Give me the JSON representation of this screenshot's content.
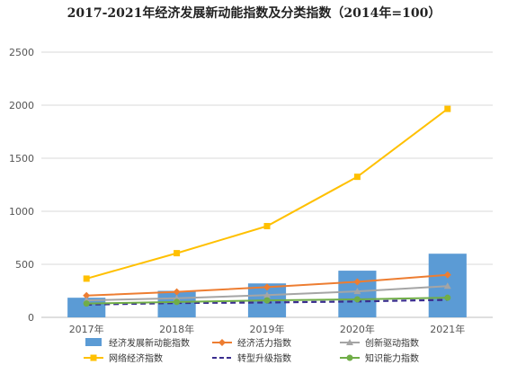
{
  "chart_data": {
    "type": "bar",
    "title": "2017-2021年经济发展新动能指数及分类指数（2014年=100）",
    "categories": [
      "2017年",
      "2018年",
      "2019年",
      "2020年",
      "2021年"
    ],
    "ylim": [
      0,
      2500
    ],
    "yticks": [
      0,
      500,
      1000,
      1500,
      2000,
      2500
    ],
    "grid": true,
    "legend_position": "bottom",
    "series": [
      {
        "name": "经济发展新动能指数",
        "kind": "bar",
        "color": "#5b9bd5",
        "values": [
          185,
          250,
          320,
          440,
          600
        ]
      },
      {
        "name": "经济活力指数",
        "kind": "line",
        "marker": "diamond",
        "color": "#ed7d31",
        "values": [
          205,
          240,
          285,
          335,
          400
        ]
      },
      {
        "name": "创新驱动指数",
        "kind": "line",
        "marker": "triangle",
        "color": "#a5a5a5",
        "values": [
          160,
          180,
          210,
          245,
          295
        ]
      },
      {
        "name": "网络经济指数",
        "kind": "line",
        "marker": "square",
        "color": "#ffc000",
        "values": [
          365,
          605,
          860,
          1325,
          1965
        ]
      },
      {
        "name": "转型升级指数",
        "kind": "line",
        "dashed": true,
        "color": "#3a2d8f",
        "values": [
          120,
          135,
          140,
          150,
          165
        ]
      },
      {
        "name": "知识能力指数",
        "kind": "line",
        "marker": "circle",
        "color": "#70ad47",
        "values": [
          130,
          145,
          160,
          170,
          185
        ]
      }
    ]
  }
}
